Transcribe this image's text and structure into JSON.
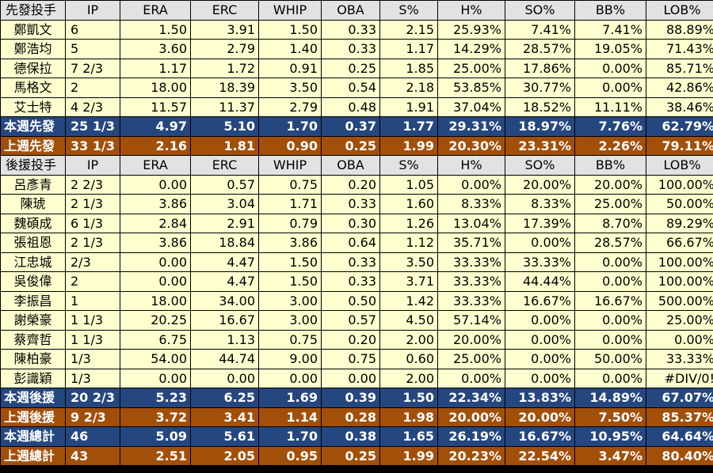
{
  "starters": {
    "header": [
      "先發投手",
      "IP",
      "ERA",
      "ERC",
      "WHIP",
      "OBA",
      "S%",
      "H%",
      "SO%",
      "BB%",
      "LOB%"
    ],
    "rows": [
      [
        "鄭凱文",
        "6",
        "1.50",
        "3.91",
        "1.50",
        "0.33",
        "2.15",
        "25.93%",
        "7.41%",
        "7.41%",
        "88.89%"
      ],
      [
        "鄭浩均",
        "5",
        "3.60",
        "2.79",
        "1.40",
        "0.33",
        "1.17",
        "14.29%",
        "28.57%",
        "19.05%",
        "71.43%"
      ],
      [
        "德保拉",
        "7 2/3",
        "1.17",
        "1.72",
        "0.91",
        "0.25",
        "1.85",
        "25.00%",
        "17.86%",
        "0.00%",
        "85.71%"
      ],
      [
        "馬格文",
        "2",
        "18.00",
        "18.39",
        "3.50",
        "0.54",
        "2.18",
        "53.85%",
        "30.77%",
        "0.00%",
        "42.86%"
      ],
      [
        "艾士特",
        "4 2/3",
        "11.57",
        "11.37",
        "2.79",
        "0.48",
        "1.91",
        "37.04%",
        "18.52%",
        "11.11%",
        "38.46%"
      ]
    ],
    "this_week": [
      "本週先發",
      "25 1/3",
      "4.97",
      "5.10",
      "1.70",
      "0.37",
      "1.77",
      "29.31%",
      "18.97%",
      "7.76%",
      "62.79%"
    ],
    "last_week": [
      "上週先發",
      "33 1/3",
      "2.16",
      "1.81",
      "0.90",
      "0.25",
      "1.99",
      "20.30%",
      "23.31%",
      "2.26%",
      "79.11%"
    ]
  },
  "relievers": {
    "header": [
      "後援投手",
      "IP",
      "ERA",
      "ERC",
      "WHIP",
      "OBA",
      "S%",
      "H%",
      "SO%",
      "BB%",
      "LOB%"
    ],
    "rows": [
      [
        "呂彥青",
        "2 2/3",
        "0.00",
        "0.57",
        "0.75",
        "0.20",
        "1.05",
        "0.00%",
        "20.00%",
        "20.00%",
        "100.00%"
      ],
      [
        "陳琥",
        "2 1/3",
        "3.86",
        "3.04",
        "1.71",
        "0.33",
        "1.60",
        "8.33%",
        "8.33%",
        "25.00%",
        "50.00%"
      ],
      [
        "魏碩成",
        "6 1/3",
        "2.84",
        "2.91",
        "0.79",
        "0.30",
        "1.26",
        "13.04%",
        "17.39%",
        "8.70%",
        "89.29%"
      ],
      [
        "張祖恩",
        "2 1/3",
        "3.86",
        "18.84",
        "3.86",
        "0.64",
        "1.12",
        "35.71%",
        "0.00%",
        "28.57%",
        "66.67%"
      ],
      [
        "江忠城",
        "2/3",
        "0.00",
        "4.47",
        "1.50",
        "0.33",
        "3.50",
        "33.33%",
        "33.33%",
        "0.00%",
        "100.00%"
      ],
      [
        "吳俊偉",
        "2",
        "0.00",
        "4.47",
        "1.50",
        "0.33",
        "3.71",
        "33.33%",
        "44.44%",
        "0.00%",
        "100.00%"
      ],
      [
        "李振昌",
        "1",
        "18.00",
        "34.00",
        "3.00",
        "0.50",
        "1.42",
        "33.33%",
        "16.67%",
        "16.67%",
        "500.00%"
      ],
      [
        "謝榮豪",
        "1 1/3",
        "20.25",
        "16.67",
        "3.00",
        "0.57",
        "4.50",
        "57.14%",
        "0.00%",
        "0.00%",
        "25.00%"
      ],
      [
        "蔡齊哲",
        "1 1/3",
        "6.75",
        "1.13",
        "0.75",
        "0.20",
        "2.00",
        "20.00%",
        "0.00%",
        "0.00%",
        "0.00%"
      ],
      [
        "陳柏豪",
        "1/3",
        "54.00",
        "44.74",
        "9.00",
        "0.75",
        "0.60",
        "25.00%",
        "0.00%",
        "50.00%",
        "33.33%"
      ],
      [
        "彭識穎",
        "1/3",
        "0.00",
        "0.00",
        "0.00",
        "0.00",
        "2.00",
        "0.00%",
        "0.00%",
        "0.00%",
        "#DIV/0!"
      ]
    ],
    "this_week": [
      "本週後援",
      "20 2/3",
      "5.23",
      "6.25",
      "1.69",
      "0.39",
      "1.50",
      "22.34%",
      "13.83%",
      "14.89%",
      "67.07%"
    ],
    "last_week": [
      "上週後援",
      "9 2/3",
      "3.72",
      "3.41",
      "1.14",
      "0.28",
      "1.98",
      "20.00%",
      "20.00%",
      "7.50%",
      "85.37%"
    ]
  },
  "totals": {
    "this_week": [
      "本週總計",
      "46",
      "5.09",
      "5.61",
      "1.70",
      "0.38",
      "1.65",
      "26.19%",
      "16.67%",
      "10.95%",
      "64.64%"
    ],
    "last_week": [
      "上週總計",
      "43",
      "2.51",
      "2.05",
      "0.95",
      "0.25",
      "1.99",
      "20.23%",
      "22.54%",
      "3.47%",
      "80.40%"
    ]
  },
  "colors": {
    "header_bg": "#e2e2e2",
    "row_bg": "#fefecf",
    "this_week_bg": "#25477f",
    "last_week_bg": "#a24f0a"
  }
}
